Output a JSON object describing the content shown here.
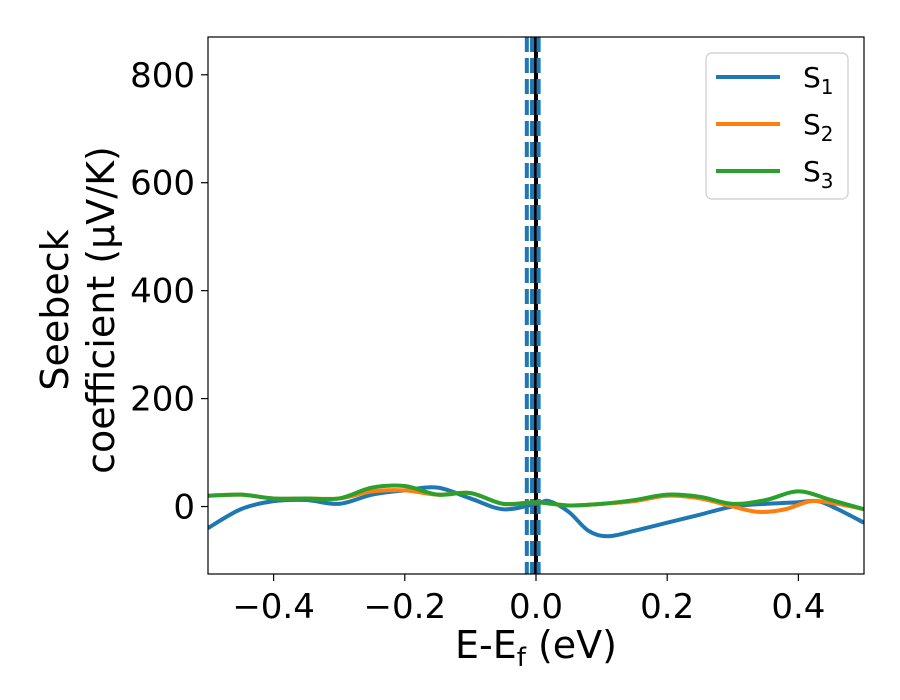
{
  "chart_data": {
    "type": "line",
    "xlabel": "E-E",
    "xlabel_sub": "f",
    "xlabel_unit": " (eV)",
    "ylabel_line1": "Seebeck",
    "ylabel_line2": "coefficient  (μV/K)",
    "xlim": [
      -0.5,
      0.5
    ],
    "ylim": [
      -125,
      870
    ],
    "xticks": [
      -0.4,
      -0.2,
      0.0,
      0.2,
      0.4
    ],
    "xtick_labels": [
      "−0.4",
      "−0.2",
      "0.0",
      "0.2",
      "0.4"
    ],
    "yticks": [
      0,
      200,
      400,
      600,
      800
    ],
    "ytick_labels": [
      "0",
      "200",
      "400",
      "600",
      "800"
    ],
    "grid": false,
    "legend_position": "top-right",
    "vertical_lines": [
      {
        "x": 0.0,
        "style": "solid",
        "color": "#000000"
      },
      {
        "x": -0.014,
        "style": "dashed",
        "color": "#1f77b4"
      },
      {
        "x": -0.006,
        "style": "dashed",
        "color": "#1f77b4"
      },
      {
        "x": 0.004,
        "style": "dashed",
        "color": "#1f77b4"
      }
    ],
    "series": [
      {
        "name": "S",
        "name_sub": "1",
        "color": "#1f77b4",
        "x": [
          -0.5,
          -0.45,
          -0.4,
          -0.35,
          -0.3,
          -0.25,
          -0.2,
          -0.15,
          -0.1,
          -0.05,
          0.0,
          0.02,
          0.05,
          0.08,
          0.11,
          0.15,
          0.2,
          0.25,
          0.3,
          0.35,
          0.4,
          0.43,
          0.46,
          0.5
        ],
        "y": [
          -40,
          -5,
          10,
          12,
          5,
          22,
          30,
          35,
          15,
          -5,
          5,
          10,
          -10,
          -45,
          -55,
          -45,
          -30,
          -15,
          0,
          5,
          8,
          10,
          -5,
          -30
        ]
      },
      {
        "name": "S",
        "name_sub": "2",
        "color": "#ff7f0e",
        "x": [
          -0.5,
          -0.45,
          -0.4,
          -0.35,
          -0.3,
          -0.25,
          -0.2,
          -0.15,
          -0.1,
          -0.05,
          0.0,
          0.05,
          0.1,
          0.15,
          0.2,
          0.25,
          0.3,
          0.34,
          0.38,
          0.42,
          0.46,
          0.5
        ],
        "y": [
          20,
          22,
          15,
          15,
          15,
          28,
          30,
          22,
          25,
          5,
          8,
          2,
          5,
          10,
          20,
          15,
          0,
          -10,
          -5,
          10,
          5,
          -5
        ]
      },
      {
        "name": "S",
        "name_sub": "3",
        "color": "#2ca02c",
        "x": [
          -0.5,
          -0.45,
          -0.4,
          -0.35,
          -0.3,
          -0.25,
          -0.2,
          -0.15,
          -0.1,
          -0.05,
          0.0,
          0.05,
          0.1,
          0.15,
          0.2,
          0.25,
          0.3,
          0.35,
          0.4,
          0.45,
          0.5
        ],
        "y": [
          20,
          22,
          15,
          15,
          15,
          35,
          38,
          22,
          25,
          5,
          8,
          2,
          5,
          12,
          22,
          18,
          5,
          12,
          28,
          12,
          -5
        ]
      }
    ]
  }
}
